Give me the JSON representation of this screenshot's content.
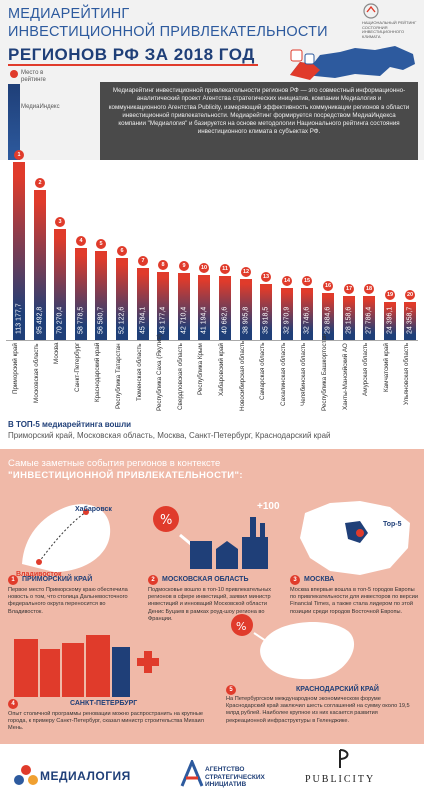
{
  "header": {
    "title_line1": "МЕДИАРЕЙТИНГ",
    "title_line2": "ИНВЕСТИЦИОННОЙ ПРИВЛЕКАТЕЛЬНОСТИ",
    "title_line3": "РЕГИОНОВ РФ ЗА 2018 ГОД",
    "logo_text": "НАЦИОНАЛЬНЫЙ РЕЙТИНГ СОСТОЯНИЯ ИНВЕСТИЦИОННОГО КЛИМАТА",
    "legend_rank": "Место в рейтинге",
    "legend_index": "МедиаИндекс",
    "description": "Медиарейтинг инвестиционной привлекательности регионов РФ — это совместный информационно-аналитический проект Агентства стратегических инициатив, компании Медиалогия и коммуникационного Агентства Publicity, измеряющий эффективность коммуникации регионов в области инвестиционной привлекательности. Медиарейтинг формируется посредством МедиаИндекса компании \"Медиалогия\" и базируется на основе методологии Национального рейтинга состояния инвестиционного климата в субъектах РФ."
  },
  "chart_data": {
    "type": "bar",
    "categories": [
      "Приморский край",
      "Московская область",
      "Москва",
      "Санкт-Петербург",
      "Краснодарский край",
      "Республика Татарстан",
      "Тюменская область",
      "Республика Саха (Якутия)",
      "Свердловская область",
      "Республика Крым",
      "Хабаровский край",
      "Новосибирская область",
      "Самарская область",
      "Сахалинская область",
      "Челябинская область",
      "Республика Башкортостан",
      "Ханты-Мансийский АО",
      "Амурская область",
      "Камчатский край",
      "Ульяновская область"
    ],
    "values": [
      113177.7,
      95492.8,
      70270.4,
      58778.5,
      56580.7,
      52122.6,
      45784.1,
      43177.4,
      42710.4,
      41194.4,
      40662.6,
      38905.8,
      35918.5,
      32970.9,
      32746.6,
      29884.6,
      28158.6,
      27786.4,
      24396.1,
      24358.7
    ],
    "value_labels": [
      "113 177,7",
      "95 492,8",
      "70 270,4",
      "58 778,5",
      "56 580,7",
      "52 122,6",
      "45 784,1",
      "43 177,4",
      "42 710,4",
      "41 194,4",
      "40 662,6",
      "38 905,8",
      "35 918,5",
      "32 970,9",
      "32 746,6",
      "29 884,6",
      "28 158,6",
      "27 786,4",
      "24 396,1",
      "24 358,7"
    ],
    "ranks": [
      "1",
      "2",
      "3",
      "4",
      "5",
      "6",
      "7",
      "8",
      "9",
      "10",
      "11",
      "12",
      "13",
      "14",
      "15",
      "16",
      "17",
      "18",
      "19",
      "20"
    ],
    "color_top": "#e03b2b",
    "color_bottom": "#1f3f78"
  },
  "top5": {
    "title": "В ТОП-5 медиарейтинга вошли",
    "text": "Приморский край, Московская область, Москва, Санкт-Петербург, Краснодарский край"
  },
  "events": {
    "title_line1": "Самые заметные события регионов в контексте",
    "title_line2": "\"ИНВЕСТИЦИОННОЙ ПРИВЛЕКАТЕЛЬНОСТИ\":",
    "map_label_khabarovsk": "Хабаровск",
    "map_label_vladivostok": "Владивосток",
    "plus_label": "+100",
    "top5_label": "Top-5",
    "cards": [
      {
        "num": "1",
        "head": "ПРИМОРСКИЙ КРАЙ",
        "body": "Первое место Приморскому краю обеспечила новость о том, что столица Дальневосточного федерального округа переносится во Владивосток."
      },
      {
        "num": "2",
        "head": "МОСКОВСКАЯ ОБЛАСТЬ",
        "body": "Подмосковье вошло в топ-10 привлекательных регионов в сфере инвестиций, заявил министр инвестиций и инноваций Московской области Денис Буцаев в рамках роуд-шоу региона во Франции."
      },
      {
        "num": "3",
        "head": "МОСКВА",
        "body": "Москва впервые вошла в топ-5 городов Европы по привлекательности для инвесторов по версии Financial Times, а также стала лидером по этой позиции среди городов Восточной Европы."
      },
      {
        "num": "4",
        "head": "САНКТ-ПЕТЕРБУРГ",
        "body": "Опыт столичной программы реновации можно распространить на крупные города, к примеру Санкт-Петербург, сказал министр строительства Михаил Мень."
      },
      {
        "num": "5",
        "head": "КРАСНОДАРСКИЙ КРАЙ",
        "body": "На Петербургском международном экономическом форуме Краснодарский край заключил шесть соглашений на сумму около 19,5 млрд рублей. Наиболее крупное из них касается развития рекреационной инфраструктуры в Геленджике."
      }
    ]
  },
  "footer": {
    "medialogia": "МЕДИАЛОГИЯ",
    "asi": "АГЕНТСТВО\nСТРАТЕГИЧЕСКИХ\nИНИЦИАТИВ",
    "publicity": "PUBLICITY"
  }
}
